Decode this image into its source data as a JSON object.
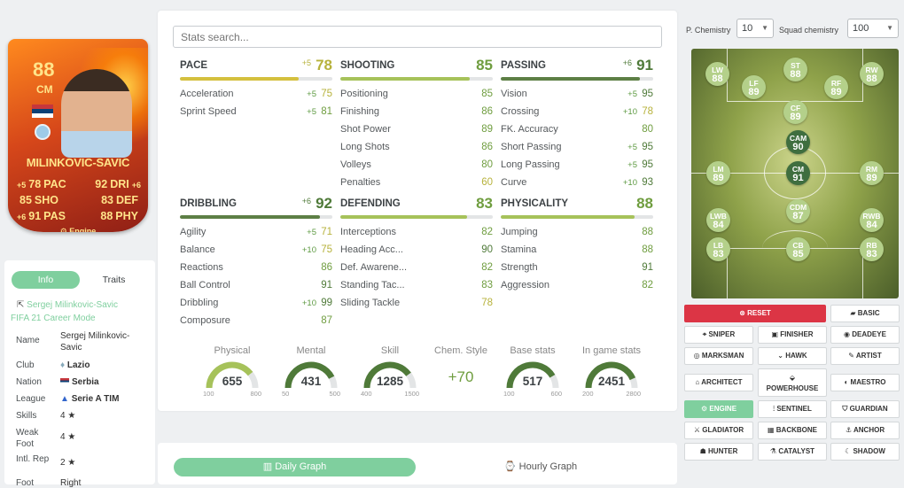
{
  "card": {
    "rating": "88",
    "position": "CM",
    "name": "MILINKOVIC-SAVIC",
    "chem_style": "Engine",
    "stats": [
      {
        "lb": "+5",
        "lv": "78",
        "ll": "PAC",
        "rv": "92",
        "rl": "DRI",
        "rb": "+6"
      },
      {
        "lb": "",
        "lv": "85",
        "ll": "SHO",
        "rv": "83",
        "rl": "DEF",
        "rb": ""
      },
      {
        "lb": "+6",
        "lv": "91",
        "ll": "PAS",
        "rv": "88",
        "rl": "PHY",
        "rb": ""
      }
    ]
  },
  "info": {
    "tabs": [
      "Info",
      "Traits"
    ],
    "player_link": "Sergej Milinkovic-Savic",
    "subtitle": "FIFA 21 Career Mode",
    "rows": [
      {
        "k": "Name",
        "v": "Sergej Milinkovic-Savic"
      },
      {
        "k": "Club",
        "v": "Lazio"
      },
      {
        "k": "Nation",
        "v": "Serbia"
      },
      {
        "k": "League",
        "v": "Serie A TIM"
      },
      {
        "k": "Skills",
        "v": "4 ★"
      },
      {
        "k": "Weak Foot",
        "v": "4 ★"
      },
      {
        "k": "Intl. Rep",
        "v": "2 ★"
      },
      {
        "k": "Foot",
        "v": "Right"
      }
    ]
  },
  "search": {
    "placeholder": "Stats search..."
  },
  "categories": [
    {
      "title": "PACE",
      "value": "78",
      "bonus": "+5",
      "fill": 0.78,
      "color": "#d4c03e",
      "subs": [
        {
          "n": "Acceleration",
          "b": "+5",
          "v": "75"
        },
        {
          "n": "Sprint Speed",
          "b": "+5",
          "v": "81"
        }
      ]
    },
    {
      "title": "SHOOTING",
      "value": "85",
      "bonus": "",
      "fill": 0.85,
      "color": "#a6c25a",
      "subs": [
        {
          "n": "Positioning",
          "b": "",
          "v": "85"
        },
        {
          "n": "Finishing",
          "b": "",
          "v": "86"
        },
        {
          "n": "Shot Power",
          "b": "",
          "v": "89"
        },
        {
          "n": "Long Shots",
          "b": "",
          "v": "86"
        },
        {
          "n": "Volleys",
          "b": "",
          "v": "80"
        },
        {
          "n": "Penalties",
          "b": "",
          "v": "60"
        }
      ]
    },
    {
      "title": "PASSING",
      "value": "91",
      "bonus": "+6",
      "fill": 0.91,
      "color": "#5d7f45",
      "subs": [
        {
          "n": "Vision",
          "b": "+5",
          "v": "95"
        },
        {
          "n": "Crossing",
          "b": "+10",
          "v": "78"
        },
        {
          "n": "FK. Accuracy",
          "b": "",
          "v": "80"
        },
        {
          "n": "Short Passing",
          "b": "+5",
          "v": "95"
        },
        {
          "n": "Long Passing",
          "b": "+5",
          "v": "95"
        },
        {
          "n": "Curve",
          "b": "+10",
          "v": "93"
        }
      ]
    },
    {
      "title": "DRIBBLING",
      "value": "92",
      "bonus": "+6",
      "fill": 0.92,
      "color": "#5d7f45",
      "subs": [
        {
          "n": "Agility",
          "b": "+5",
          "v": "71"
        },
        {
          "n": "Balance",
          "b": "+10",
          "v": "75"
        },
        {
          "n": "Reactions",
          "b": "",
          "v": "86"
        },
        {
          "n": "Ball Control",
          "b": "",
          "v": "91"
        },
        {
          "n": "Dribbling",
          "b": "+10",
          "v": "99"
        },
        {
          "n": "Composure",
          "b": "",
          "v": "87"
        }
      ]
    },
    {
      "title": "DEFENDING",
      "value": "83",
      "bonus": "",
      "fill": 0.83,
      "color": "#a6c25a",
      "subs": [
        {
          "n": "Interceptions",
          "b": "",
          "v": "82"
        },
        {
          "n": "Heading Acc...",
          "b": "",
          "v": "90"
        },
        {
          "n": "Def. Awarene...",
          "b": "",
          "v": "82"
        },
        {
          "n": "Standing Tac...",
          "b": "",
          "v": "83"
        },
        {
          "n": "Sliding Tackle",
          "b": "",
          "v": "78"
        }
      ]
    },
    {
      "title": "PHYSICALITY",
      "value": "88",
      "bonus": "",
      "fill": 0.88,
      "color": "#a6c25a",
      "subs": [
        {
          "n": "Jumping",
          "b": "",
          "v": "88"
        },
        {
          "n": "Stamina",
          "b": "",
          "v": "88"
        },
        {
          "n": "Strength",
          "b": "",
          "v": "91"
        },
        {
          "n": "Aggression",
          "b": "",
          "v": "82"
        }
      ]
    }
  ],
  "gauges": [
    {
      "label": "Physical",
      "value": "655",
      "min": "100",
      "max": "800",
      "fill": 0.79,
      "color": "#a6c25a"
    },
    {
      "label": "Mental",
      "value": "431",
      "min": "50",
      "max": "500",
      "fill": 0.85,
      "color": "#4f7a39"
    },
    {
      "label": "Skill",
      "value": "1285",
      "min": "400",
      "max": "1500",
      "fill": 0.8,
      "color": "#4f7a39"
    },
    {
      "label": "Base stats",
      "value": "517",
      "min": "100",
      "max": "600",
      "fill": 0.83,
      "color": "#4f7a39"
    },
    {
      "label": "In game stats",
      "value": "2451",
      "min": "200",
      "max": "2800",
      "fill": 0.87,
      "color": "#4f7a39"
    }
  ],
  "chem_style": {
    "label": "Chem. Style",
    "value": "+70"
  },
  "graphs": {
    "daily": "Daily Graph",
    "hourly": "Hourly Graph"
  },
  "chemistry": {
    "p_label": "P. Chemistry",
    "p_value": "10",
    "squad_label": "Squad chemistry",
    "squad_value": "100"
  },
  "pitch_players": [
    {
      "p": "LW",
      "r": "88"
    },
    {
      "p": "ST",
      "r": "88"
    },
    {
      "p": "RW",
      "r": "88"
    },
    {
      "p": "LF",
      "r": "89"
    },
    {
      "p": "RF",
      "r": "89"
    },
    {
      "p": "CF",
      "r": "89"
    },
    {
      "p": "CAM",
      "r": "90"
    },
    {
      "p": "LM",
      "r": "89"
    },
    {
      "p": "CM",
      "r": "91"
    },
    {
      "p": "RM",
      "r": "89"
    },
    {
      "p": "CDM",
      "r": "87"
    },
    {
      "p": "LWB",
      "r": "84"
    },
    {
      "p": "RWB",
      "r": "84"
    },
    {
      "p": "LB",
      "r": "83"
    },
    {
      "p": "CB",
      "r": "85"
    },
    {
      "p": "RB",
      "r": "83"
    }
  ],
  "chem_buttons": {
    "reset": "RESET",
    "basic": "BASIC",
    "sniper": "SNIPER",
    "finisher": "FINISHER",
    "deadeye": "DEADEYE",
    "marksman": "MARKSMAN",
    "hawk": "HAWK",
    "artist": "ARTIST",
    "architect": "ARCHITECT",
    "powerhouse": "POWERHOUSE",
    "maestro": "MAESTRO",
    "engine": "ENGINE",
    "sentinel": "SENTINEL",
    "guardian": "GUARDIAN",
    "gladiator": "GLADIATOR",
    "backbone": "BACKBONE",
    "anchor": "ANCHOR",
    "hunter": "HUNTER",
    "catalyst": "CATALYST",
    "shadow": "SHADOW"
  }
}
